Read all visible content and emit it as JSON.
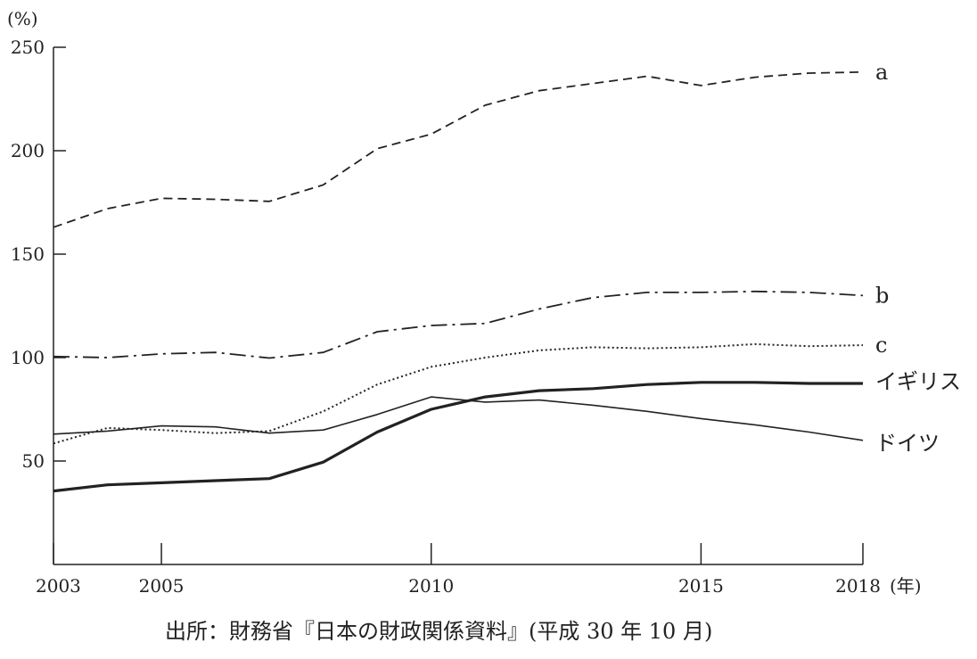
{
  "chart_data": {
    "type": "line",
    "title": "",
    "ylabel": "(%)",
    "xlabel": "(年)",
    "xlim": [
      2003,
      2018
    ],
    "ylim": [
      0,
      250
    ],
    "x_ticks": [
      2003,
      2005,
      2010,
      2015,
      2018
    ],
    "y_ticks": [
      50,
      100,
      150,
      200,
      250
    ],
    "x": [
      2003,
      2004,
      2005,
      2006,
      2007,
      2008,
      2009,
      2010,
      2011,
      2012,
      2013,
      2014,
      2015,
      2016,
      2017,
      2018
    ],
    "series": [
      {
        "name": "a",
        "style": "dashed",
        "color": "#222222",
        "values": [
          163,
          172,
          177,
          176.5,
          175.5,
          183.5,
          201,
          208,
          222,
          229,
          232.5,
          236,
          231.5,
          235.5,
          237.5,
          238
        ]
      },
      {
        "name": "b",
        "style": "dash-dot",
        "color": "#222222",
        "values": [
          100.5,
          100,
          101.8,
          102.5,
          99.8,
          102.5,
          112.5,
          115.5,
          116.5,
          123.5,
          129,
          131.5,
          131.5,
          132,
          131.5,
          130
        ]
      },
      {
        "name": "c",
        "style": "dotted",
        "color": "#222222",
        "values": [
          58.5,
          66,
          65,
          63.5,
          64.5,
          74,
          87,
          95.5,
          100,
          103.5,
          105,
          104.5,
          105,
          106.5,
          105.5,
          106
        ]
      },
      {
        "name": "イギリス",
        "style": "solid-bold",
        "color": "#222222",
        "values": [
          35.5,
          38.5,
          39.5,
          40.5,
          41.5,
          49.5,
          64,
          75,
          81,
          84,
          85,
          87,
          88,
          88,
          87.5,
          87.5
        ]
      },
      {
        "name": "ドイツ",
        "style": "solid",
        "color": "#222222",
        "values": [
          63,
          64.5,
          67,
          66.5,
          63.5,
          65,
          72.5,
          81,
          78.5,
          79.5,
          77,
          74,
          70.5,
          67.5,
          64,
          60
        ]
      }
    ],
    "grid": false,
    "legend": "inline-right"
  },
  "source": "出所：財務省『日本の財政関係資料』(平成 30 年 10 月)"
}
